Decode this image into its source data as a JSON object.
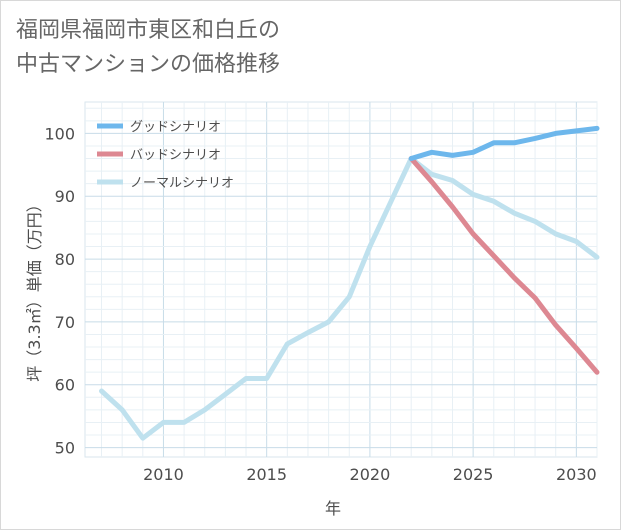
{
  "chart_data": {
    "type": "line",
    "title": "福岡県福岡市東区和白丘の\n中古マンションの価格推移",
    "xlabel": "年",
    "ylabel": "坪（3.3㎡）単価（万円）",
    "xlim": [
      2006.2,
      2031
    ],
    "ylim": [
      48.5,
      105
    ],
    "x_ticks": [
      "2010",
      "2015",
      "2020",
      "2025",
      "2030"
    ],
    "y_ticks": [
      "50",
      "60",
      "70",
      "80",
      "90",
      "100"
    ],
    "legend_position": "top-left",
    "grid": true,
    "series": [
      {
        "name": "グッドシナリオ",
        "color": "#6db7ec",
        "x": [
          2022,
          2023,
          2024,
          2025,
          2026,
          2027,
          2028,
          2029,
          2030,
          2031
        ],
        "y": [
          96,
          97,
          96.5,
          97,
          98.5,
          98.5,
          99.2,
          100,
          100.4,
          100.8
        ]
      },
      {
        "name": "バッドシナリオ",
        "color": "#dd8892",
        "x": [
          2022,
          2023,
          2024,
          2025,
          2026,
          2027,
          2028,
          2029,
          2030,
          2031
        ],
        "y": [
          96,
          92.3,
          88.3,
          84,
          80.5,
          77,
          73.8,
          69.5,
          65.8,
          62
        ]
      },
      {
        "name": "ノーマルシナリオ",
        "color": "#bfe1ee",
        "x": [
          2007,
          2008,
          2009,
          2010,
          2011,
          2012,
          2013,
          2014,
          2015,
          2016,
          2017,
          2018,
          2019,
          2020,
          2021,
          2022,
          2023,
          2024,
          2025,
          2026,
          2027,
          2028,
          2029,
          2030,
          2031
        ],
        "y": [
          59,
          56,
          51.5,
          54,
          54,
          56,
          58.5,
          61,
          61,
          66.5,
          68.3,
          70,
          74,
          82,
          89,
          96,
          93.5,
          92.5,
          90.3,
          89.2,
          87.3,
          86,
          84,
          82.8,
          80.3
        ]
      }
    ]
  }
}
